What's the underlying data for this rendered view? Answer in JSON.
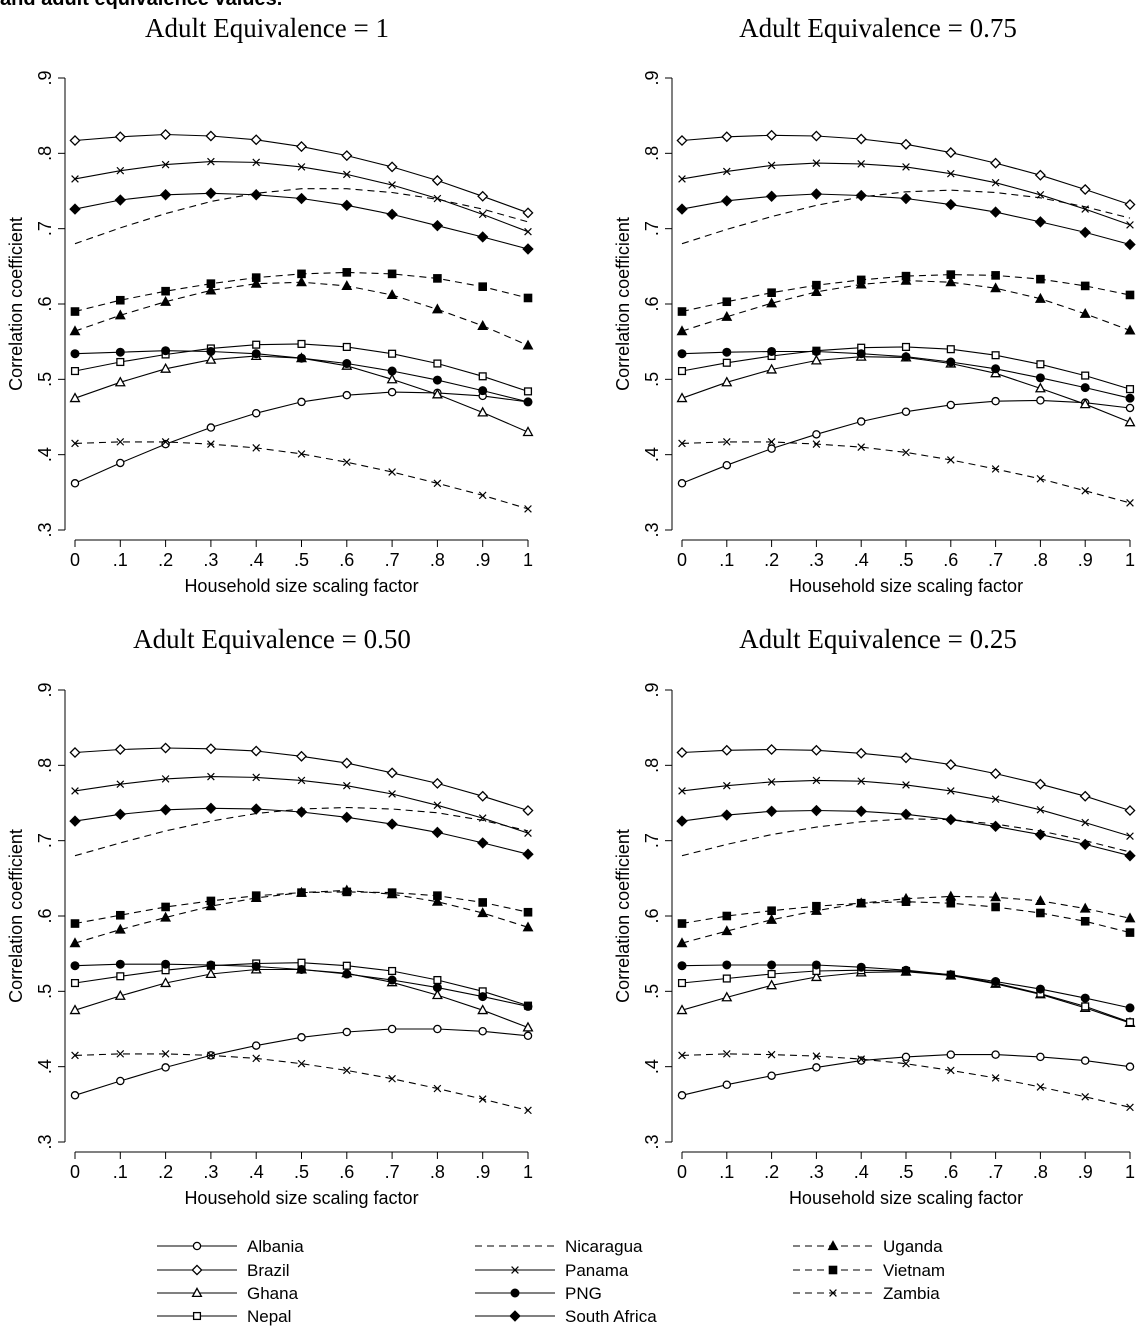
{
  "caption": "and adult equivalence values.",
  "chart_data": [
    {
      "type": "line",
      "title": "Adult Equivalence = 1",
      "xlabel": "Household size scaling factor",
      "ylabel": "Correlation coefficient",
      "xlim": [
        0,
        1
      ],
      "ylim": [
        0.3,
        0.9
      ],
      "x": [
        0,
        0.1,
        0.2,
        0.3,
        0.4,
        0.5,
        0.6,
        0.7,
        0.8,
        0.9,
        1
      ],
      "series": [
        {
          "name": "Albania",
          "values": [
            0.362,
            0.389,
            0.414,
            0.436,
            0.455,
            0.47,
            0.479,
            0.483,
            0.482,
            0.478,
            0.47
          ]
        },
        {
          "name": "Brazil",
          "values": [
            0.817,
            0.822,
            0.825,
            0.823,
            0.818,
            0.809,
            0.797,
            0.782,
            0.764,
            0.743,
            0.721
          ]
        },
        {
          "name": "Ghana",
          "values": [
            0.475,
            0.496,
            0.514,
            0.526,
            0.531,
            0.528,
            0.518,
            0.5,
            0.48,
            0.456,
            0.43
          ]
        },
        {
          "name": "Nepal",
          "values": [
            0.511,
            0.523,
            0.533,
            0.541,
            0.546,
            0.547,
            0.543,
            0.534,
            0.521,
            0.504,
            0.484
          ]
        },
        {
          "name": "Nicaragua",
          "values": [
            0.68,
            0.701,
            0.72,
            0.736,
            0.747,
            0.753,
            0.753,
            0.748,
            0.739,
            0.726,
            0.709
          ]
        },
        {
          "name": "Panama",
          "values": [
            0.766,
            0.777,
            0.785,
            0.789,
            0.788,
            0.782,
            0.772,
            0.758,
            0.74,
            0.719,
            0.696
          ]
        },
        {
          "name": "PNG",
          "values": [
            0.534,
            0.536,
            0.538,
            0.537,
            0.534,
            0.528,
            0.521,
            0.511,
            0.499,
            0.485,
            0.47
          ]
        },
        {
          "name": "South Africa",
          "values": [
            0.726,
            0.738,
            0.745,
            0.747,
            0.745,
            0.74,
            0.731,
            0.719,
            0.704,
            0.689,
            0.673
          ]
        },
        {
          "name": "Uganda",
          "values": [
            0.564,
            0.585,
            0.603,
            0.618,
            0.627,
            0.629,
            0.624,
            0.612,
            0.593,
            0.571,
            0.545
          ]
        },
        {
          "name": "Vietnam",
          "values": [
            0.59,
            0.605,
            0.617,
            0.627,
            0.635,
            0.64,
            0.642,
            0.64,
            0.634,
            0.623,
            0.608
          ]
        },
        {
          "name": "Zambia",
          "values": [
            0.415,
            0.417,
            0.417,
            0.414,
            0.409,
            0.401,
            0.39,
            0.377,
            0.362,
            0.346,
            0.328
          ]
        }
      ]
    },
    {
      "type": "line",
      "title": "Adult Equivalence = 0.75",
      "xlabel": "Household size scaling factor",
      "ylabel": "Correlation coefficient",
      "xlim": [
        0,
        1
      ],
      "ylim": [
        0.3,
        0.9
      ],
      "x": [
        0,
        0.1,
        0.2,
        0.3,
        0.4,
        0.5,
        0.6,
        0.7,
        0.8,
        0.9,
        1
      ],
      "series": [
        {
          "name": "Albania",
          "values": [
            0.362,
            0.386,
            0.408,
            0.427,
            0.444,
            0.457,
            0.466,
            0.471,
            0.472,
            0.469,
            0.462
          ]
        },
        {
          "name": "Brazil",
          "values": [
            0.817,
            0.822,
            0.824,
            0.823,
            0.819,
            0.812,
            0.801,
            0.787,
            0.771,
            0.752,
            0.732
          ]
        },
        {
          "name": "Ghana",
          "values": [
            0.475,
            0.496,
            0.513,
            0.525,
            0.53,
            0.529,
            0.521,
            0.508,
            0.488,
            0.467,
            0.443
          ]
        },
        {
          "name": "Nepal",
          "values": [
            0.511,
            0.522,
            0.531,
            0.538,
            0.542,
            0.543,
            0.54,
            0.532,
            0.52,
            0.505,
            0.487
          ]
        },
        {
          "name": "Nicaragua",
          "values": [
            0.68,
            0.699,
            0.716,
            0.731,
            0.742,
            0.749,
            0.751,
            0.748,
            0.741,
            0.729,
            0.714
          ]
        },
        {
          "name": "Panama",
          "values": [
            0.766,
            0.776,
            0.784,
            0.787,
            0.786,
            0.782,
            0.773,
            0.761,
            0.745,
            0.726,
            0.705
          ]
        },
        {
          "name": "PNG",
          "values": [
            0.534,
            0.536,
            0.537,
            0.537,
            0.534,
            0.53,
            0.523,
            0.514,
            0.502,
            0.489,
            0.475
          ]
        },
        {
          "name": "South Africa",
          "values": [
            0.726,
            0.737,
            0.743,
            0.746,
            0.744,
            0.74,
            0.732,
            0.722,
            0.709,
            0.695,
            0.679
          ]
        },
        {
          "name": "Uganda",
          "values": [
            0.564,
            0.583,
            0.601,
            0.616,
            0.626,
            0.631,
            0.629,
            0.621,
            0.607,
            0.587,
            0.565
          ]
        },
        {
          "name": "Vietnam",
          "values": [
            0.59,
            0.603,
            0.615,
            0.625,
            0.632,
            0.637,
            0.639,
            0.638,
            0.633,
            0.624,
            0.612
          ]
        },
        {
          "name": "Zambia",
          "values": [
            0.415,
            0.417,
            0.417,
            0.414,
            0.41,
            0.403,
            0.393,
            0.381,
            0.368,
            0.352,
            0.336
          ]
        }
      ]
    },
    {
      "type": "line",
      "title": "Adult Equivalence = 0.50",
      "xlabel": "Household size scaling factor",
      "ylabel": "Correlation coefficient",
      "xlim": [
        0,
        1
      ],
      "ylim": [
        0.3,
        0.9
      ],
      "x": [
        0,
        0.1,
        0.2,
        0.3,
        0.4,
        0.5,
        0.6,
        0.7,
        0.8,
        0.9,
        1
      ],
      "series": [
        {
          "name": "Albania",
          "values": [
            0.362,
            0.381,
            0.399,
            0.415,
            0.428,
            0.439,
            0.446,
            0.45,
            0.45,
            0.447,
            0.441
          ]
        },
        {
          "name": "Brazil",
          "values": [
            0.817,
            0.821,
            0.823,
            0.822,
            0.819,
            0.812,
            0.803,
            0.79,
            0.776,
            0.759,
            0.74
          ]
        },
        {
          "name": "Ghana",
          "values": [
            0.475,
            0.494,
            0.511,
            0.523,
            0.529,
            0.529,
            0.524,
            0.512,
            0.495,
            0.475,
            0.452
          ]
        },
        {
          "name": "Nepal",
          "values": [
            0.511,
            0.52,
            0.528,
            0.534,
            0.537,
            0.538,
            0.534,
            0.527,
            0.515,
            0.5,
            0.481
          ]
        },
        {
          "name": "Nicaragua",
          "values": [
            0.68,
            0.697,
            0.713,
            0.726,
            0.736,
            0.742,
            0.744,
            0.742,
            0.737,
            0.727,
            0.713
          ]
        },
        {
          "name": "Panama",
          "values": [
            0.766,
            0.775,
            0.782,
            0.785,
            0.784,
            0.78,
            0.773,
            0.762,
            0.747,
            0.73,
            0.71
          ]
        },
        {
          "name": "PNG",
          "values": [
            0.534,
            0.536,
            0.536,
            0.535,
            0.533,
            0.529,
            0.523,
            0.515,
            0.505,
            0.493,
            0.48
          ]
        },
        {
          "name": "South Africa",
          "values": [
            0.726,
            0.735,
            0.741,
            0.743,
            0.742,
            0.738,
            0.731,
            0.722,
            0.711,
            0.697,
            0.682
          ]
        },
        {
          "name": "Uganda",
          "values": [
            0.564,
            0.582,
            0.598,
            0.613,
            0.624,
            0.631,
            0.634,
            0.629,
            0.619,
            0.604,
            0.585
          ]
        },
        {
          "name": "Vietnam",
          "values": [
            0.59,
            0.601,
            0.612,
            0.62,
            0.627,
            0.631,
            0.632,
            0.631,
            0.627,
            0.618,
            0.605
          ]
        },
        {
          "name": "Zambia",
          "values": [
            0.415,
            0.417,
            0.417,
            0.415,
            0.411,
            0.404,
            0.395,
            0.384,
            0.371,
            0.357,
            0.342
          ]
        }
      ]
    },
    {
      "type": "line",
      "title": "Adult Equivalence = 0.25",
      "xlabel": "Household size scaling factor",
      "ylabel": "Correlation coefficient",
      "xlim": [
        0,
        1
      ],
      "ylim": [
        0.3,
        0.9
      ],
      "x": [
        0,
        0.1,
        0.2,
        0.3,
        0.4,
        0.5,
        0.6,
        0.7,
        0.8,
        0.9,
        1
      ],
      "series": [
        {
          "name": "Albania",
          "values": [
            0.362,
            0.376,
            0.388,
            0.399,
            0.408,
            0.413,
            0.416,
            0.416,
            0.413,
            0.408,
            0.4
          ]
        },
        {
          "name": "Brazil",
          "values": [
            0.817,
            0.82,
            0.821,
            0.82,
            0.816,
            0.81,
            0.801,
            0.789,
            0.775,
            0.759,
            0.74
          ]
        },
        {
          "name": "Ghana",
          "values": [
            0.475,
            0.492,
            0.508,
            0.519,
            0.525,
            0.526,
            0.521,
            0.51,
            0.496,
            0.478,
            0.458
          ]
        },
        {
          "name": "Nepal",
          "values": [
            0.511,
            0.517,
            0.523,
            0.527,
            0.528,
            0.527,
            0.522,
            0.511,
            0.497,
            0.48,
            0.459
          ]
        },
        {
          "name": "Nicaragua",
          "values": [
            0.68,
            0.695,
            0.708,
            0.718,
            0.725,
            0.729,
            0.728,
            0.722,
            0.713,
            0.7,
            0.685
          ]
        },
        {
          "name": "Panama",
          "values": [
            0.766,
            0.773,
            0.778,
            0.78,
            0.779,
            0.774,
            0.766,
            0.755,
            0.741,
            0.724,
            0.706
          ]
        },
        {
          "name": "PNG",
          "values": [
            0.534,
            0.535,
            0.535,
            0.535,
            0.532,
            0.528,
            0.522,
            0.513,
            0.503,
            0.491,
            0.478
          ]
        },
        {
          "name": "South Africa",
          "values": [
            0.726,
            0.734,
            0.739,
            0.74,
            0.739,
            0.735,
            0.728,
            0.719,
            0.708,
            0.695,
            0.68
          ]
        },
        {
          "name": "Uganda",
          "values": [
            0.564,
            0.58,
            0.595,
            0.607,
            0.617,
            0.623,
            0.626,
            0.625,
            0.62,
            0.61,
            0.597
          ]
        },
        {
          "name": "Vietnam",
          "values": [
            0.59,
            0.6,
            0.607,
            0.613,
            0.617,
            0.619,
            0.617,
            0.612,
            0.604,
            0.593,
            0.578
          ]
        },
        {
          "name": "Zambia",
          "values": [
            0.415,
            0.417,
            0.416,
            0.414,
            0.41,
            0.404,
            0.395,
            0.385,
            0.373,
            0.36,
            0.346
          ]
        }
      ]
    }
  ],
  "legend": {
    "placement": "bottom",
    "items": [
      {
        "name": "Albania",
        "marker": "circle-hollow",
        "line": "solid"
      },
      {
        "name": "Brazil",
        "marker": "diamond-hollow",
        "line": "solid"
      },
      {
        "name": "Ghana",
        "marker": "triangle-hollow",
        "line": "solid"
      },
      {
        "name": "Nepal",
        "marker": "square-hollow",
        "line": "solid"
      },
      {
        "name": "Nicaragua",
        "marker": "none",
        "line": "dashed"
      },
      {
        "name": "Panama",
        "marker": "x",
        "line": "solid"
      },
      {
        "name": "PNG",
        "marker": "circle-filled",
        "line": "solid"
      },
      {
        "name": "South Africa",
        "marker": "diamond-filled",
        "line": "solid"
      },
      {
        "name": "Uganda",
        "marker": "triangle-filled",
        "line": "dashed"
      },
      {
        "name": "Vietnam",
        "marker": "square-filled",
        "line": "dashed"
      },
      {
        "name": "Zambia",
        "marker": "x",
        "line": "dashed"
      }
    ]
  },
  "y_tick_labels": [
    ".3",
    ".4",
    ".5",
    ".6",
    ".7",
    ".8",
    ".9"
  ],
  "x_tick_labels": [
    "0",
    ".1",
    ".2",
    ".3",
    ".4",
    ".5",
    ".6",
    ".7",
    ".8",
    ".9",
    "1"
  ]
}
